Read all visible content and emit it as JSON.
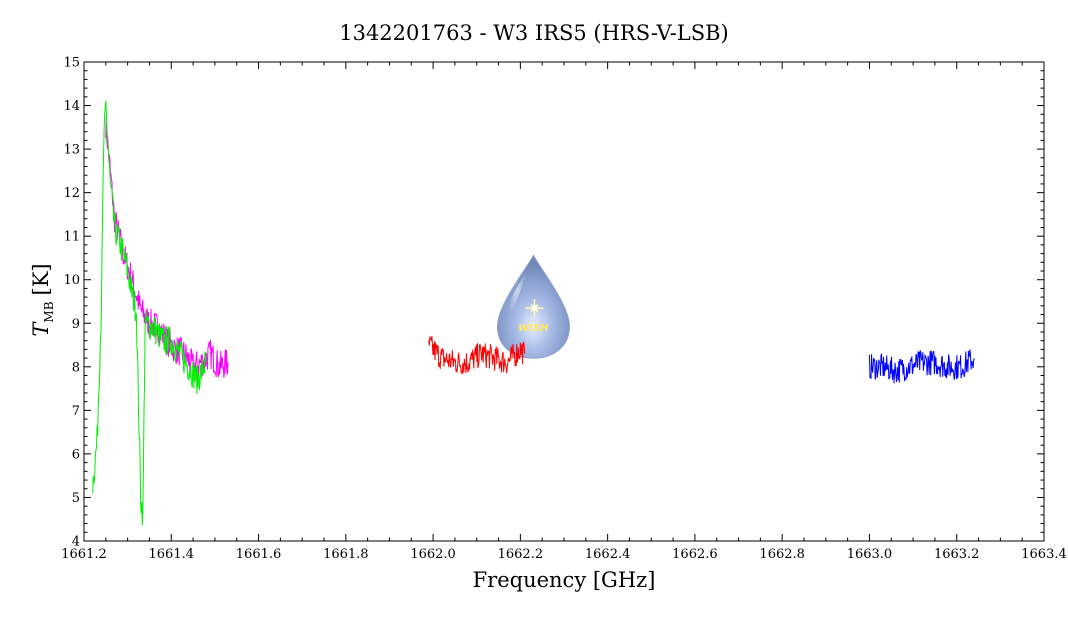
{
  "chart_data": {
    "type": "line",
    "title": "1342201763 - W3 IRS5 (HRS-V-LSB)",
    "xlabel": "Frequency [GHz]",
    "ylabel_main": "T",
    "ylabel_sub": "MB",
    "ylabel_unit": "[K]",
    "xlim": [
      1661.2,
      1663.4
    ],
    "ylim": [
      4,
      15
    ],
    "xticks": [
      1661.2,
      1661.4,
      1661.6,
      1661.8,
      1662.0,
      1662.2,
      1662.4,
      1662.6,
      1662.8,
      1663.0,
      1663.2,
      1663.4
    ],
    "xtick_labels": [
      "1661.2",
      "1661.4",
      "1661.6",
      "1661.8",
      "1662.0",
      "1662.2",
      "1662.4",
      "1662.6",
      "1662.8",
      "1663.0",
      "1663.2",
      "1663.4"
    ],
    "yticks": [
      4,
      5,
      6,
      7,
      8,
      9,
      10,
      11,
      12,
      13,
      14,
      15
    ],
    "ytick_labels": [
      "4",
      "5",
      "6",
      "7",
      "8",
      "9",
      "10",
      "11",
      "12",
      "13",
      "14",
      "15"
    ],
    "grid": false,
    "series": [
      {
        "color": "#ff00ff",
        "x": [
          1661.25,
          1661.27,
          1661.29,
          1661.31,
          1661.33,
          1661.35,
          1661.37,
          1661.39,
          1661.41,
          1661.43,
          1661.45,
          1661.47,
          1661.49,
          1661.51,
          1661.53
        ],
        "y": [
          13.6,
          11.4,
          10.6,
          10.0,
          9.3,
          9.0,
          8.9,
          8.6,
          8.4,
          8.3,
          8.0,
          8.1,
          8.3,
          8.0,
          8.1
        ],
        "noise": 0.35
      },
      {
        "color": "#00ee00",
        "x": [
          1661.22,
          1661.23,
          1661.24,
          1661.245,
          1661.25,
          1661.26,
          1661.27,
          1661.28,
          1661.29,
          1661.3,
          1661.31,
          1661.32,
          1661.33,
          1661.335,
          1661.34,
          1661.36,
          1661.38,
          1661.4,
          1661.42,
          1661.44,
          1661.46,
          1661.48
        ],
        "y": [
          5.3,
          6.3,
          9.5,
          13.0,
          14.0,
          12.2,
          11.2,
          10.9,
          10.6,
          10.2,
          9.7,
          9.3,
          5.0,
          4.6,
          9.0,
          8.9,
          8.6,
          8.6,
          8.3,
          8.0,
          7.7,
          8.1
        ],
        "noise": 0.35
      },
      {
        "color": "#ff0000",
        "x": [
          1661.99,
          1662.02,
          1662.05,
          1662.08,
          1662.11,
          1662.14,
          1662.17,
          1662.2,
          1662.21
        ],
        "y": [
          8.5,
          8.2,
          8.1,
          8.1,
          8.3,
          8.2,
          8.1,
          8.4,
          8.3
        ],
        "noise": 0.3
      },
      {
        "color": "#0000ff",
        "x": [
          1663.0,
          1663.03,
          1663.06,
          1663.09,
          1663.12,
          1663.15,
          1663.18,
          1663.21,
          1663.24
        ],
        "y": [
          8.0,
          8.0,
          7.9,
          8.0,
          8.1,
          8.1,
          8.0,
          8.0,
          8.2
        ],
        "noise": 0.3
      }
    ],
    "logo": {
      "text": "WISH",
      "x": 1662.23,
      "y": 9.3
    }
  }
}
